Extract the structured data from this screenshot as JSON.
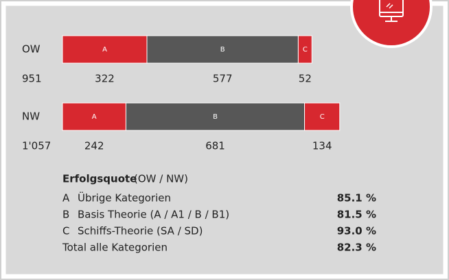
{
  "chart_data": {
    "type": "bar",
    "orientation": "horizontal",
    "stacked": true,
    "categories": [
      "OW",
      "NW"
    ],
    "totals": [
      951,
      {
        "value": 1057,
        "label": "1'057"
      }
    ],
    "series": [
      {
        "name": "A",
        "color": "#d7282f",
        "values": [
          322,
          242
        ]
      },
      {
        "name": "B",
        "color": "#575757",
        "values": [
          577,
          681
        ]
      },
      {
        "name": "C",
        "color": "#d7282f",
        "values": [
          52,
          134
        ]
      }
    ],
    "legend": [
      "Übrige Kategorien",
      "Basis Theorie (A / A1 / B / B1)",
      "Schiffs-Theorie (SA / SD)"
    ],
    "success": {
      "title": "Erfolgsquote",
      "subtitle": "(OW / NW)",
      "rates": [
        {
          "value": 85.1,
          "label": "85.1 %"
        },
        {
          "value": 81.5,
          "label": "81.5 %"
        },
        {
          "value": 93.0,
          "label": "93.0 %"
        }
      ],
      "total_label": "Total alle Kategorien",
      "total_rate": {
        "value": 82.3,
        "label": "82.3 %"
      }
    }
  }
}
